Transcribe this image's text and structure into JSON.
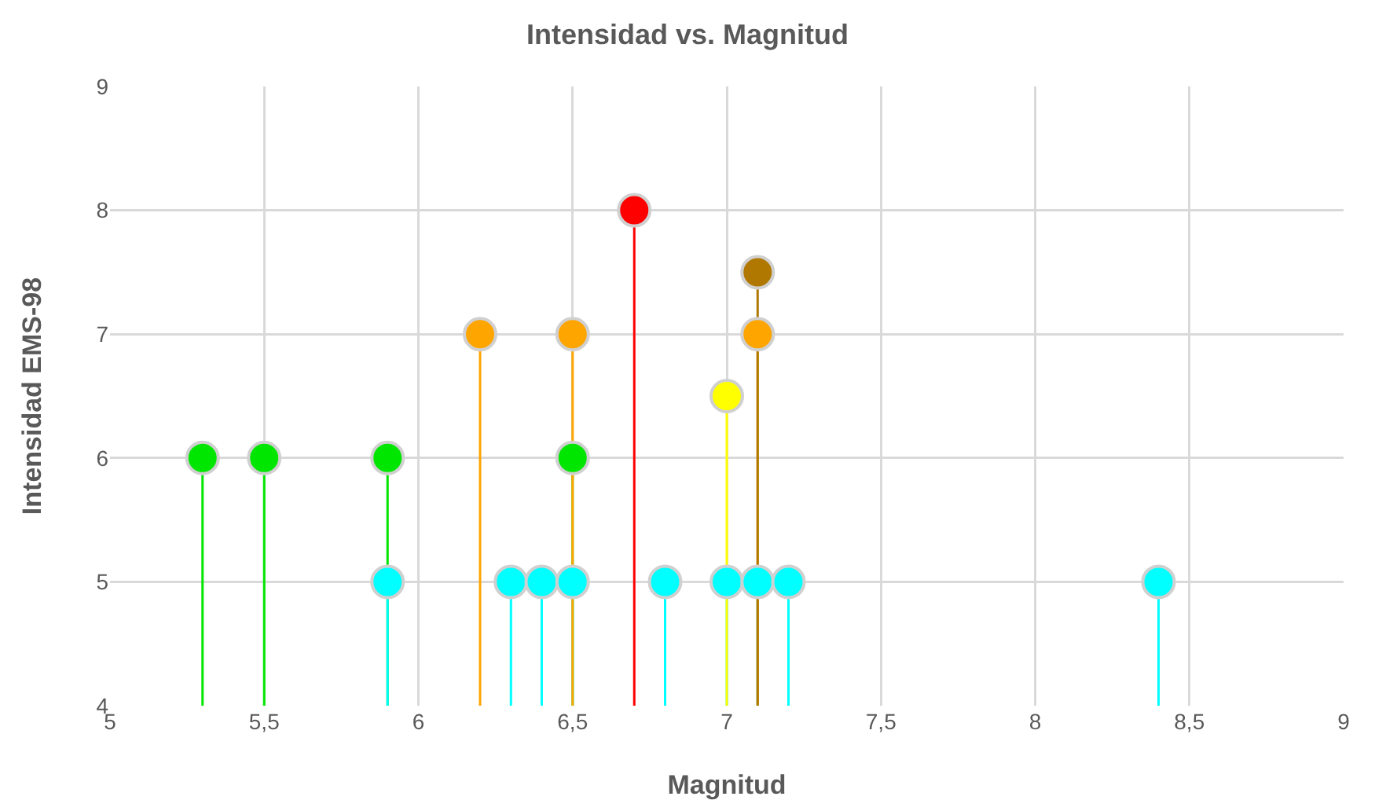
{
  "chart_data": {
    "type": "lollipop",
    "title": "Intensidad vs. Magnitud",
    "xlabel": "Magnitud",
    "ylabel": "Intensidad EMS-98",
    "xlim": [
      5,
      9
    ],
    "xticks": [
      5,
      {
        "value": 5.5,
        "label": "5,5"
      },
      6,
      {
        "value": 6.5,
        "label": "6,5"
      },
      7,
      {
        "value": 7.5,
        "label": "7,5"
      },
      8,
      {
        "value": 8.5,
        "label": "8,5"
      },
      9
    ],
    "ylim": [
      4,
      9
    ],
    "yticks": [
      4,
      5,
      6,
      7,
      8,
      9
    ],
    "grid": true,
    "marker": "circle",
    "series": [
      {
        "color": "#00e600",
        "x": [
          5.3,
          5.5,
          5.9,
          6.5
        ],
        "values": [
          6,
          6,
          6,
          6
        ]
      },
      {
        "color": "#00ffff",
        "x": [
          5.9,
          6.3,
          6.4,
          6.5,
          6.8,
          7.0,
          7.1,
          7.2,
          8.4
        ],
        "values": [
          5,
          5,
          5,
          5,
          5,
          5,
          5,
          5,
          5
        ]
      },
      {
        "color": "#ffa500",
        "x": [
          6.2,
          6.5,
          7.1
        ],
        "values": [
          7,
          7,
          7
        ]
      },
      {
        "color": "#ff0000",
        "x": [
          6.7
        ],
        "values": [
          8
        ]
      },
      {
        "color": "#ffff00",
        "x": [
          7.0
        ],
        "values": [
          6.5
        ]
      },
      {
        "color": "#b07800",
        "x": [
          7.1
        ],
        "values": [
          7.5
        ]
      }
    ]
  }
}
